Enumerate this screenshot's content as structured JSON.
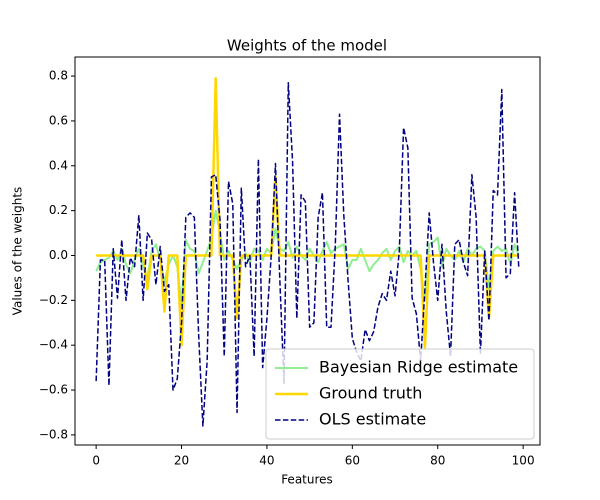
{
  "chart_data": {
    "type": "line",
    "title": "Weights of the model",
    "x_label": "Features",
    "y_label": "Values of the weights",
    "x": [
      0,
      1,
      2,
      3,
      4,
      5,
      6,
      7,
      8,
      9,
      10,
      11,
      12,
      13,
      14,
      15,
      16,
      17,
      18,
      19,
      20,
      21,
      22,
      23,
      24,
      25,
      26,
      27,
      28,
      29,
      30,
      31,
      32,
      33,
      34,
      35,
      36,
      37,
      38,
      39,
      40,
      41,
      42,
      43,
      44,
      45,
      46,
      47,
      48,
      49,
      50,
      51,
      52,
      53,
      54,
      55,
      56,
      57,
      58,
      59,
      60,
      61,
      62,
      63,
      64,
      65,
      66,
      67,
      68,
      69,
      70,
      71,
      72,
      73,
      74,
      75,
      76,
      77,
      78,
      79,
      80,
      81,
      82,
      83,
      84,
      85,
      86,
      87,
      88,
      89,
      90,
      91,
      92,
      93,
      94,
      95,
      96,
      97,
      98,
      99
    ],
    "series": [
      {
        "name": "Bayesian Ridge estimate",
        "color": "#90ee90",
        "linestyle": "solid",
        "linewidth": 2,
        "values": [
          -0.07,
          -0.03,
          -0.02,
          -0.01,
          0.02,
          -0.02,
          0.03,
          -0.04,
          -0.08,
          -0.02,
          0.03,
          -0.05,
          -0.1,
          0.02,
          0.05,
          -0.02,
          -0.12,
          -0.04,
          0.0,
          -0.05,
          -0.22,
          0.07,
          0.03,
          0.02,
          -0.08,
          -0.03,
          0.02,
          0.08,
          0.2,
          0.1,
          -0.02,
          0.02,
          -0.02,
          -0.06,
          -0.02,
          0.01,
          -0.03,
          0.03,
          0.02,
          -0.02,
          0.03,
          0.01,
          0.12,
          0.03,
          0.02,
          0.06,
          -0.01,
          0.04,
          0.0,
          -0.02,
          0.03,
          0.0,
          -0.03,
          0.02,
          0.06,
          0.01,
          0.03,
          0.04,
          0.05,
          -0.06,
          -0.02,
          -0.02,
          0.03,
          -0.02,
          -0.07,
          -0.04,
          -0.02,
          0.01,
          0.03,
          -0.02,
          0.02,
          0.04,
          -0.03,
          0.02,
          0.0,
          0.02,
          -0.06,
          -0.2,
          0.05,
          0.06,
          0.08,
          -0.05,
          0.03,
          0.0,
          -0.02,
          0.02,
          -0.03,
          0.03,
          0.0,
          0.03,
          0.04,
          0.02,
          -0.15,
          0.02,
          0.04,
          0.02,
          0.03,
          -0.04,
          0.05,
          0.0
        ]
      },
      {
        "name": "Ground truth",
        "color": "#ffd700",
        "linestyle": "solid",
        "linewidth": 2.5,
        "values": [
          0,
          0,
          0,
          0,
          0,
          0,
          0,
          0,
          0,
          0,
          0,
          0,
          -0.15,
          0,
          0,
          0,
          -0.25,
          0,
          0,
          0,
          -0.4,
          0,
          0,
          0,
          0,
          0,
          0,
          0,
          0.79,
          0,
          0,
          0,
          0,
          -0.28,
          0,
          0,
          0,
          0,
          0,
          0,
          0,
          0,
          0.35,
          0,
          0,
          0,
          0,
          0,
          0,
          0,
          0,
          0,
          0,
          0,
          0,
          0,
          0,
          0,
          0,
          0,
          0,
          0,
          0,
          0,
          0,
          0,
          0,
          0,
          0,
          0,
          0,
          0,
          0,
          0,
          0,
          0,
          0,
          -0.41,
          0,
          0,
          0,
          0,
          0,
          0,
          0,
          0,
          0,
          0,
          0,
          0,
          0,
          0,
          -0.28,
          0,
          0,
          0,
          0,
          0,
          0,
          0
        ]
      },
      {
        "name": "OLS estimate",
        "color": "#000080",
        "linestyle": "dashed",
        "linewidth": 1.5,
        "values": [
          -0.56,
          -0.02,
          -0.02,
          -0.58,
          0.03,
          -0.19,
          0.07,
          -0.2,
          -0.01,
          -0.05,
          0.18,
          -0.2,
          0.1,
          0.07,
          -0.13,
          0.04,
          -0.16,
          -0.13,
          -0.6,
          -0.55,
          -0.3,
          0.17,
          0.19,
          0.17,
          -0.35,
          -0.76,
          -0.47,
          0.35,
          0.36,
          0.16,
          -0.45,
          0.33,
          0.23,
          -0.7,
          0.3,
          -0.05,
          0.0,
          -0.45,
          0.43,
          -0.5,
          -0.28,
          0.0,
          0.41,
          -0.1,
          -0.57,
          0.77,
          0.42,
          -0.28,
          0.27,
          0.24,
          -0.32,
          -0.3,
          0.17,
          0.28,
          -0.32,
          -0.32,
          0.04,
          0.63,
          0.18,
          -0.11,
          -0.37,
          -0.43,
          -0.47,
          -0.33,
          -0.38,
          -0.34,
          -0.23,
          -0.17,
          -0.2,
          -0.07,
          -0.18,
          0.02,
          0.57,
          0.48,
          -0.19,
          -0.26,
          -0.47,
          -0.15,
          0.19,
          -0.03,
          -0.2,
          0.05,
          -0.25,
          -0.45,
          0.05,
          0.07,
          -0.03,
          -0.09,
          0.36,
          0.17,
          -0.44,
          0.02,
          -0.29,
          0.29,
          0.27,
          0.74,
          -0.1,
          -0.08,
          0.28,
          -0.06
        ]
      }
    ],
    "xlim": [
      -4.95,
      103.95
    ],
    "xticks": [
      0,
      20,
      40,
      60,
      80,
      100
    ],
    "ylim": [
      -0.845,
      0.885
    ],
    "yticks": [
      {
        "value": -0.8,
        "label": "−0.8"
      },
      {
        "value": -0.6,
        "label": "−0.6"
      },
      {
        "value": -0.4,
        "label": "−0.4"
      },
      {
        "value": -0.2,
        "label": "−0.2"
      },
      {
        "value": 0,
        "label": "0.0"
      },
      0.2,
      0.4,
      0.6,
      0.8
    ],
    "grid": false,
    "legend": "lower right"
  }
}
